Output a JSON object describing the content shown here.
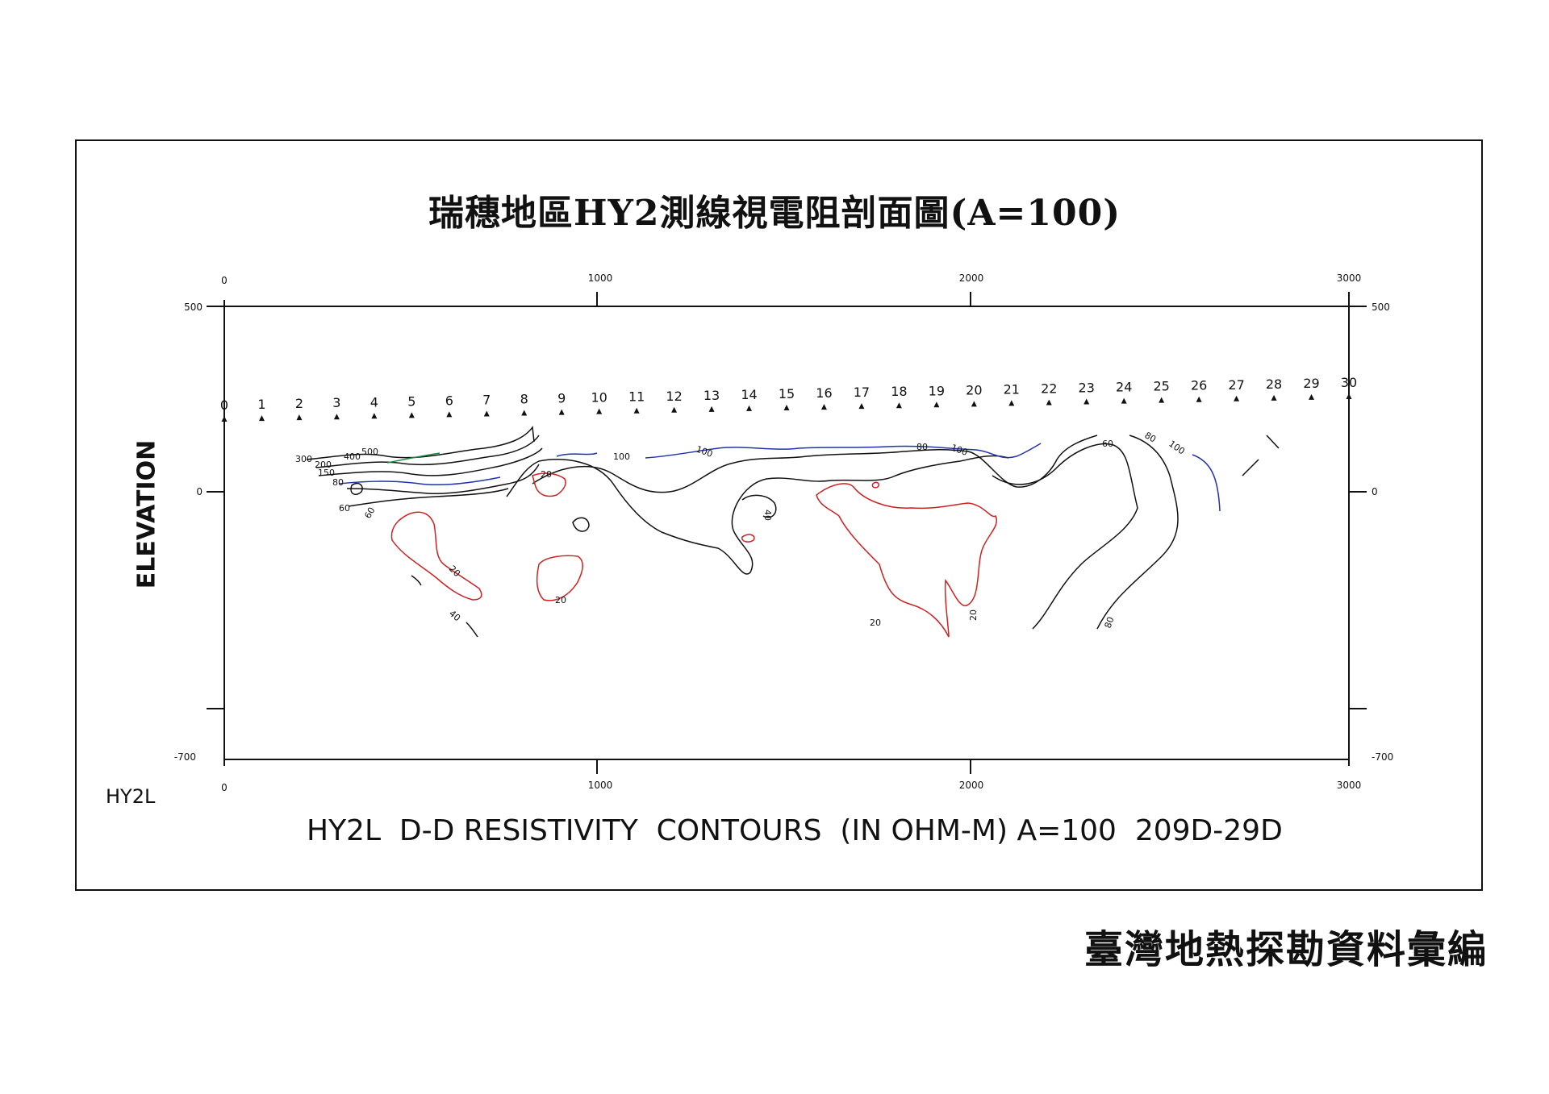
{
  "title": "瑞穗地區HY2測線視電阻剖面圖(A=100)",
  "caption": "HY2L  D-D RESISTIVITY  CONTOURS  (IN OHM-M) A=100  209D-29D",
  "line_label": "HY2L",
  "y_axis_label": "ELEVATION",
  "credit": "臺灣地熱探勘資料彙編",
  "x_ticks": [
    "0",
    "1000",
    "2000",
    "3000"
  ],
  "y_ticks": [
    "500",
    "0",
    "-700"
  ],
  "stations": [
    "0",
    "1",
    "2",
    "3",
    "4",
    "5",
    "6",
    "7",
    "8",
    "9",
    "10",
    "11",
    "12",
    "13",
    "14",
    "15",
    "16",
    "17",
    "18",
    "19",
    "20",
    "21",
    "22",
    "23",
    "24",
    "25",
    "26",
    "27",
    "28",
    "29",
    "30"
  ],
  "contour_labels": [
    "300",
    "200",
    "150",
    "80",
    "60",
    "400",
    "500",
    "60",
    "20",
    "100",
    "100",
    "80",
    "100",
    "60",
    "80",
    "100",
    "40",
    "20",
    "20",
    "40",
    "20",
    "20",
    "80"
  ],
  "colors": {
    "contour_low": "#cc2222",
    "contour_mid": "#111111",
    "contour_100": "#2233aa",
    "contour_high": "#228844"
  }
}
